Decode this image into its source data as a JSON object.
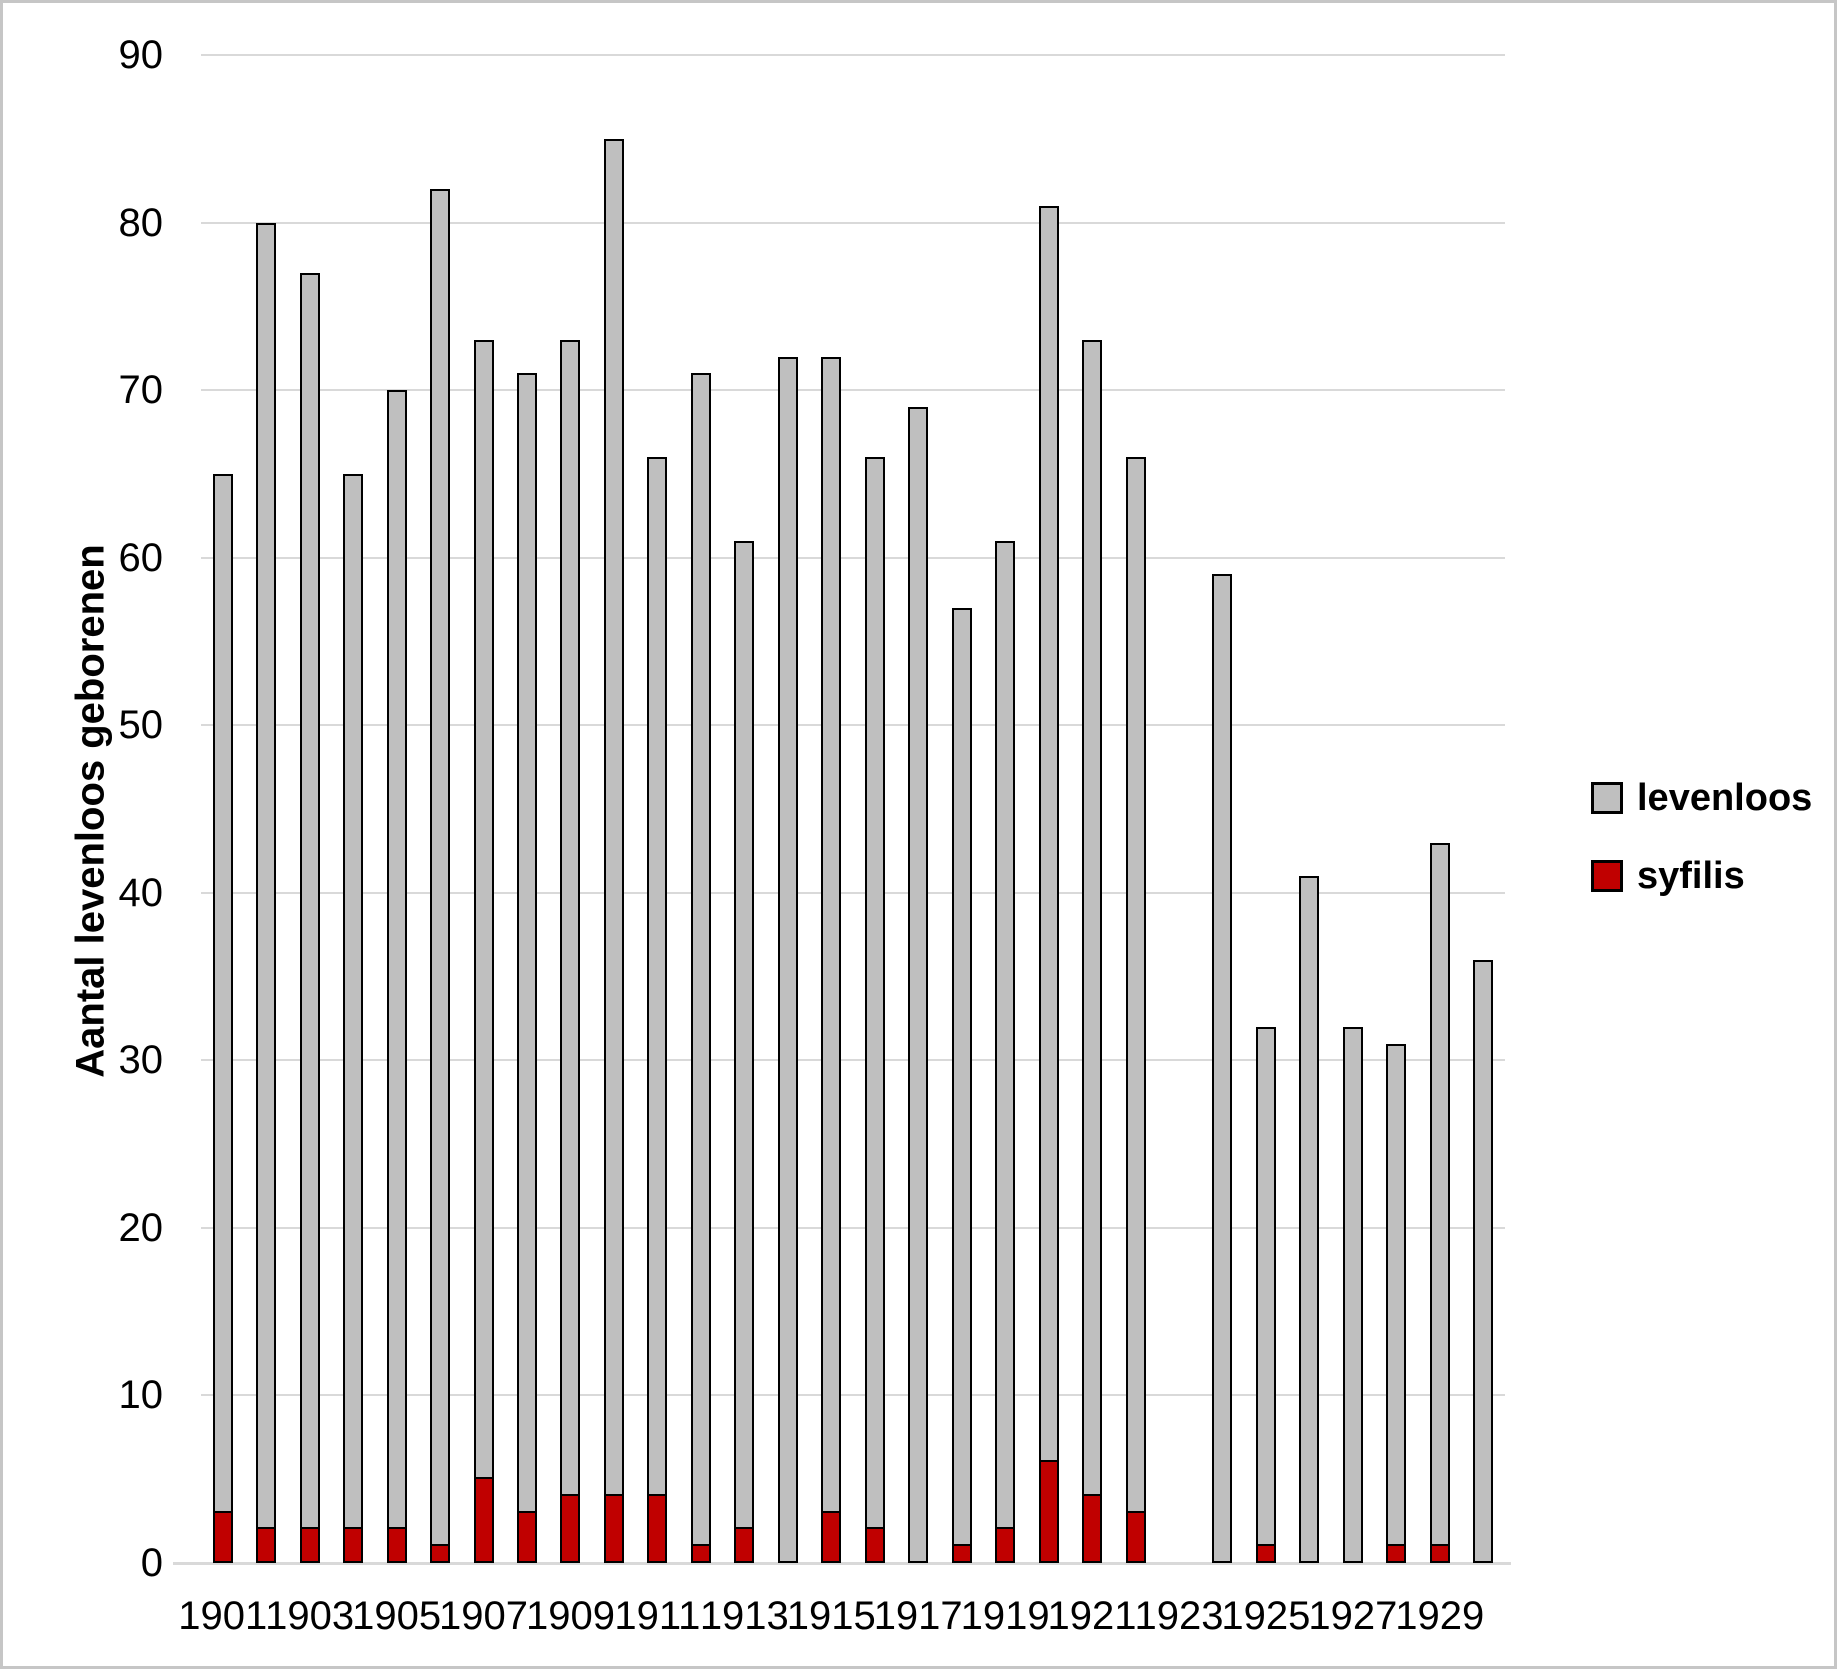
{
  "chart_data": {
    "type": "bar",
    "subtype": "overlay-stacked",
    "title": "",
    "xlabel": "",
    "ylabel": "Aantal levenloos geborenen",
    "ylim": [
      0,
      90
    ],
    "ytick_interval": 10,
    "grid": true,
    "legend_position": "right",
    "categories": [
      1901,
      1902,
      1903,
      1904,
      1905,
      1906,
      1907,
      1908,
      1909,
      1910,
      1911,
      1912,
      1913,
      1914,
      1915,
      1916,
      1917,
      1918,
      1919,
      1920,
      1921,
      1922,
      1923,
      1924,
      1925,
      1926,
      1927,
      1928,
      1929,
      1930
    ],
    "xtick_labels": [
      "1901",
      "1903",
      "1905",
      "1907",
      "1909",
      "1911",
      "1913",
      "1915",
      "1917",
      "1919",
      "1921",
      "1923",
      "1925",
      "1927",
      "1929"
    ],
    "gap_years": [
      1923
    ],
    "series": [
      {
        "name": "levenloos",
        "color": "#bfbfbf",
        "values": [
          65,
          80,
          77,
          65,
          70,
          82,
          73,
          71,
          73,
          85,
          66,
          71,
          61,
          72,
          72,
          66,
          69,
          57,
          61,
          81,
          73,
          66,
          null,
          59,
          32,
          41,
          32,
          31,
          43,
          36
        ]
      },
      {
        "name": "syfilis",
        "color": "#c00000",
        "values": [
          3,
          2,
          2,
          2,
          2,
          1,
          5,
          3,
          4,
          4,
          4,
          1,
          2,
          0,
          3,
          2,
          0,
          1,
          2,
          6,
          4,
          3,
          null,
          0,
          1,
          0,
          0,
          1,
          1,
          0
        ]
      }
    ]
  },
  "legend": {
    "items": [
      {
        "label": "levenloos",
        "color": "#bfbfbf"
      },
      {
        "label": "syfilis",
        "color": "#c00000"
      }
    ]
  },
  "colors": {
    "bar_gray": "#bfbfbf",
    "bar_red": "#c00000",
    "bar_outline": "#000000",
    "gridline": "#d9d9d9",
    "frame_border": "#c6c6c6",
    "text": "#000000"
  }
}
